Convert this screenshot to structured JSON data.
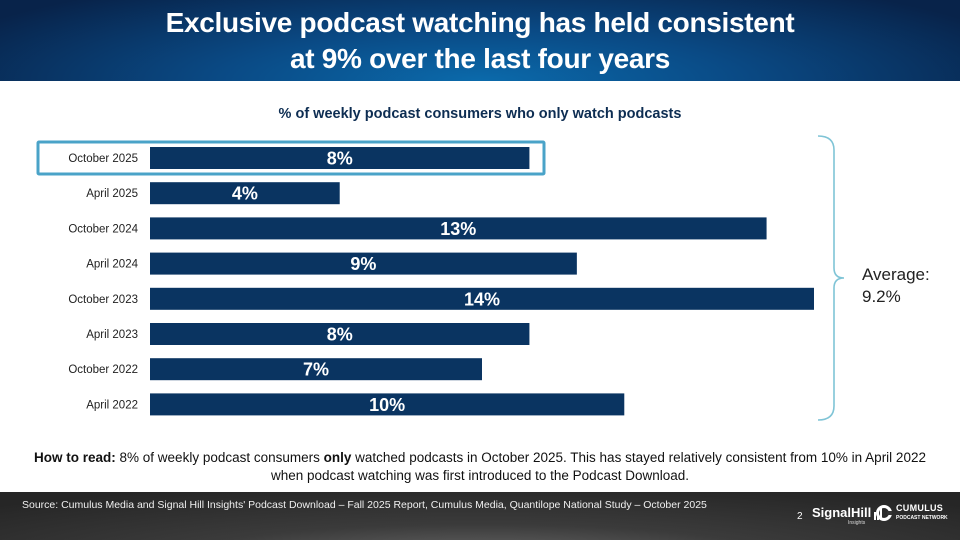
{
  "header": {
    "title_line1": "Exclusive podcast watching has held consistent",
    "title_line2": "at 9% over the last four years"
  },
  "colors": {
    "bar": "#0a3461",
    "highlight_box": "#4aa3c8",
    "brace": "#7fc4d6"
  },
  "chart_data": {
    "type": "bar",
    "orientation": "horizontal",
    "title": "% of weekly podcast consumers who only watch podcasts",
    "xlabel": "",
    "ylabel": "",
    "categories": [
      "October 2025",
      "April 2025",
      "October 2024",
      "April 2024",
      "October 2023",
      "April 2023",
      "October 2022",
      "April 2022"
    ],
    "values": [
      8,
      4,
      13,
      9,
      14,
      8,
      7,
      10
    ],
    "data_labels": [
      "8%",
      "4%",
      "13%",
      "9%",
      "14%",
      "8%",
      "7%",
      "10%"
    ],
    "highlighted_category": "October 2025",
    "xlim": [
      0,
      14
    ],
    "grid": false,
    "legend": "none",
    "annotation": {
      "label": "Average:",
      "value": "9.2%"
    }
  },
  "how_to_read": {
    "lead": "How to read:",
    "part1": " 8% of weekly podcast consumers ",
    "emphasis": "only",
    "part2": " watched podcasts in October 2025. This has stayed relatively consistent from 10% in April 2022 when podcast watching was first introduced to the Podcast Download."
  },
  "footer": {
    "source": "Source: Cumulus Media and Signal Hill Insights' Podcast Download – Fall 2025 Report, Cumulus Media, Quantilope National Study – October 2025",
    "page_number": "2",
    "logo1": "SignalHill",
    "logo1_sub": "Insights",
    "logo2_main": "CUMULUS",
    "logo2_sub": "PODCAST NETWORK"
  }
}
